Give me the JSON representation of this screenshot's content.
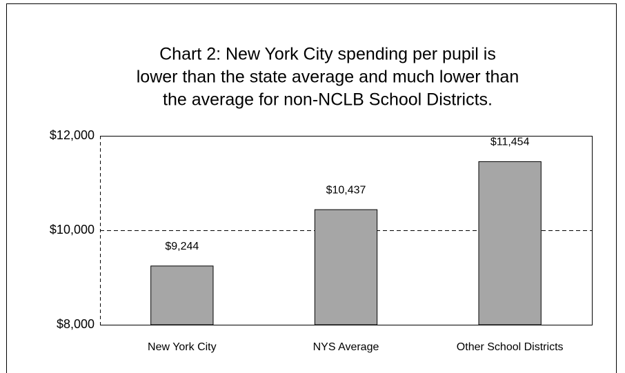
{
  "chart_data": {
    "type": "bar",
    "title": [
      "Chart 2:  New York City spending per pupil is",
      "lower than the state average and much lower than",
      "the average for non-NCLB School Districts."
    ],
    "categories": [
      "New  York City",
      "NYS Average",
      "Other School Districts"
    ],
    "values": [
      9244,
      10437,
      11454
    ],
    "value_labels": [
      "$9,244",
      "$10,437",
      "$11,454"
    ],
    "color": "#a6a6a6",
    "ylim": [
      8000,
      12000
    ],
    "yticks": [
      {
        "value": 8000,
        "label": "$8,000"
      },
      {
        "value": 10000,
        "label": "$10,000"
      },
      {
        "value": 12000,
        "label": "$12,000"
      }
    ],
    "grid": true
  }
}
